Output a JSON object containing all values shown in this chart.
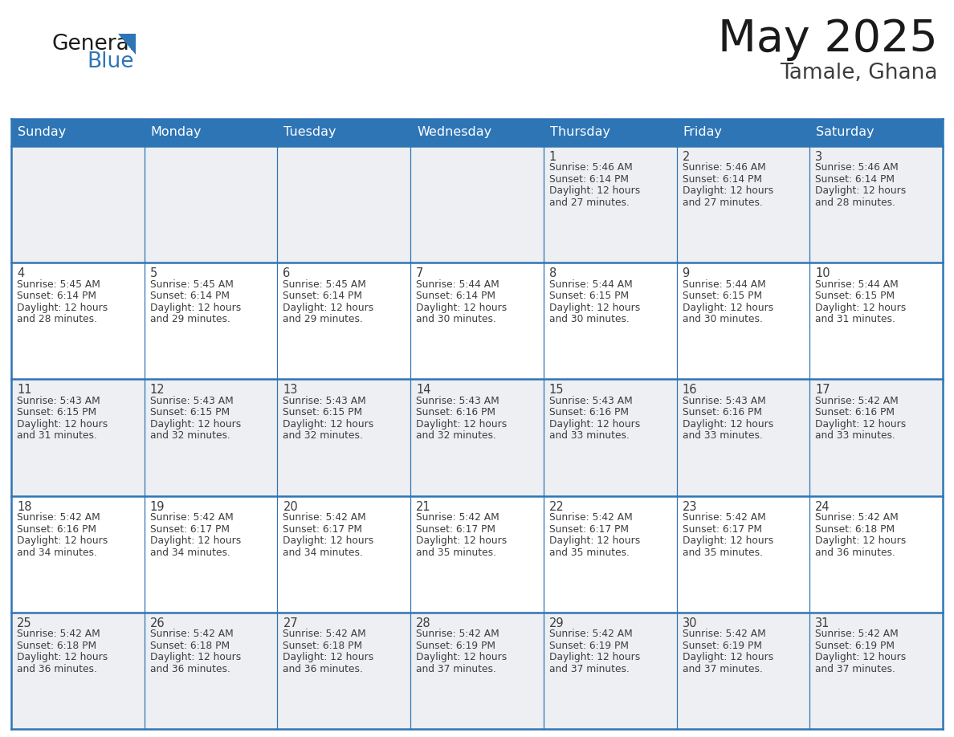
{
  "title": "May 2025",
  "subtitle": "Tamale, Ghana",
  "header_bg": "#2E75B6",
  "header_text": "#FFFFFF",
  "day_names": [
    "Sunday",
    "Monday",
    "Tuesday",
    "Wednesday",
    "Thursday",
    "Friday",
    "Saturday"
  ],
  "row_bg_odd": "#EDEFF2",
  "row_bg_even": "#FFFFFF",
  "text_color": "#3D3D3D",
  "border_color": "#2E75B6",
  "days": [
    {
      "day": 1,
      "col": 4,
      "row": 0,
      "sunrise": "5:46 AM",
      "sunset": "6:14 PM",
      "daylight": "12 hours and 27 minutes."
    },
    {
      "day": 2,
      "col": 5,
      "row": 0,
      "sunrise": "5:46 AM",
      "sunset": "6:14 PM",
      "daylight": "12 hours and 27 minutes."
    },
    {
      "day": 3,
      "col": 6,
      "row": 0,
      "sunrise": "5:46 AM",
      "sunset": "6:14 PM",
      "daylight": "12 hours and 28 minutes."
    },
    {
      "day": 4,
      "col": 0,
      "row": 1,
      "sunrise": "5:45 AM",
      "sunset": "6:14 PM",
      "daylight": "12 hours and 28 minutes."
    },
    {
      "day": 5,
      "col": 1,
      "row": 1,
      "sunrise": "5:45 AM",
      "sunset": "6:14 PM",
      "daylight": "12 hours and 29 minutes."
    },
    {
      "day": 6,
      "col": 2,
      "row": 1,
      "sunrise": "5:45 AM",
      "sunset": "6:14 PM",
      "daylight": "12 hours and 29 minutes."
    },
    {
      "day": 7,
      "col": 3,
      "row": 1,
      "sunrise": "5:44 AM",
      "sunset": "6:14 PM",
      "daylight": "12 hours and 30 minutes."
    },
    {
      "day": 8,
      "col": 4,
      "row": 1,
      "sunrise": "5:44 AM",
      "sunset": "6:15 PM",
      "daylight": "12 hours and 30 minutes."
    },
    {
      "day": 9,
      "col": 5,
      "row": 1,
      "sunrise": "5:44 AM",
      "sunset": "6:15 PM",
      "daylight": "12 hours and 30 minutes."
    },
    {
      "day": 10,
      "col": 6,
      "row": 1,
      "sunrise": "5:44 AM",
      "sunset": "6:15 PM",
      "daylight": "12 hours and 31 minutes."
    },
    {
      "day": 11,
      "col": 0,
      "row": 2,
      "sunrise": "5:43 AM",
      "sunset": "6:15 PM",
      "daylight": "12 hours and 31 minutes."
    },
    {
      "day": 12,
      "col": 1,
      "row": 2,
      "sunrise": "5:43 AM",
      "sunset": "6:15 PM",
      "daylight": "12 hours and 32 minutes."
    },
    {
      "day": 13,
      "col": 2,
      "row": 2,
      "sunrise": "5:43 AM",
      "sunset": "6:15 PM",
      "daylight": "12 hours and 32 minutes."
    },
    {
      "day": 14,
      "col": 3,
      "row": 2,
      "sunrise": "5:43 AM",
      "sunset": "6:16 PM",
      "daylight": "12 hours and 32 minutes."
    },
    {
      "day": 15,
      "col": 4,
      "row": 2,
      "sunrise": "5:43 AM",
      "sunset": "6:16 PM",
      "daylight": "12 hours and 33 minutes."
    },
    {
      "day": 16,
      "col": 5,
      "row": 2,
      "sunrise": "5:43 AM",
      "sunset": "6:16 PM",
      "daylight": "12 hours and 33 minutes."
    },
    {
      "day": 17,
      "col": 6,
      "row": 2,
      "sunrise": "5:42 AM",
      "sunset": "6:16 PM",
      "daylight": "12 hours and 33 minutes."
    },
    {
      "day": 18,
      "col": 0,
      "row": 3,
      "sunrise": "5:42 AM",
      "sunset": "6:16 PM",
      "daylight": "12 hours and 34 minutes."
    },
    {
      "day": 19,
      "col": 1,
      "row": 3,
      "sunrise": "5:42 AM",
      "sunset": "6:17 PM",
      "daylight": "12 hours and 34 minutes."
    },
    {
      "day": 20,
      "col": 2,
      "row": 3,
      "sunrise": "5:42 AM",
      "sunset": "6:17 PM",
      "daylight": "12 hours and 34 minutes."
    },
    {
      "day": 21,
      "col": 3,
      "row": 3,
      "sunrise": "5:42 AM",
      "sunset": "6:17 PM",
      "daylight": "12 hours and 35 minutes."
    },
    {
      "day": 22,
      "col": 4,
      "row": 3,
      "sunrise": "5:42 AM",
      "sunset": "6:17 PM",
      "daylight": "12 hours and 35 minutes."
    },
    {
      "day": 23,
      "col": 5,
      "row": 3,
      "sunrise": "5:42 AM",
      "sunset": "6:17 PM",
      "daylight": "12 hours and 35 minutes."
    },
    {
      "day": 24,
      "col": 6,
      "row": 3,
      "sunrise": "5:42 AM",
      "sunset": "6:18 PM",
      "daylight": "12 hours and 36 minutes."
    },
    {
      "day": 25,
      "col": 0,
      "row": 4,
      "sunrise": "5:42 AM",
      "sunset": "6:18 PM",
      "daylight": "12 hours and 36 minutes."
    },
    {
      "day": 26,
      "col": 1,
      "row": 4,
      "sunrise": "5:42 AM",
      "sunset": "6:18 PM",
      "daylight": "12 hours and 36 minutes."
    },
    {
      "day": 27,
      "col": 2,
      "row": 4,
      "sunrise": "5:42 AM",
      "sunset": "6:18 PM",
      "daylight": "12 hours and 36 minutes."
    },
    {
      "day": 28,
      "col": 3,
      "row": 4,
      "sunrise": "5:42 AM",
      "sunset": "6:19 PM",
      "daylight": "12 hours and 37 minutes."
    },
    {
      "day": 29,
      "col": 4,
      "row": 4,
      "sunrise": "5:42 AM",
      "sunset": "6:19 PM",
      "daylight": "12 hours and 37 minutes."
    },
    {
      "day": 30,
      "col": 5,
      "row": 4,
      "sunrise": "5:42 AM",
      "sunset": "6:19 PM",
      "daylight": "12 hours and 37 minutes."
    },
    {
      "day": 31,
      "col": 6,
      "row": 4,
      "sunrise": "5:42 AM",
      "sunset": "6:19 PM",
      "daylight": "12 hours and 37 minutes."
    }
  ],
  "logo_general_color": "#1A1A1A",
  "logo_blue_color": "#2E75B6",
  "logo_triangle_color": "#2E75B6"
}
